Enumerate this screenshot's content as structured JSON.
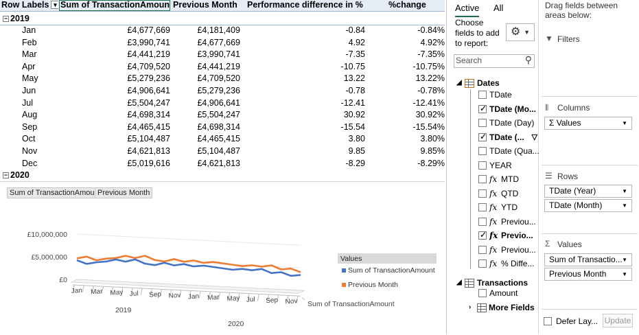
{
  "pivot": {
    "headers": [
      "Row Labels",
      "Sum of TransactionAmount",
      "Previous Month",
      "Performance difference in %",
      "%change"
    ],
    "year1": "2019",
    "year2": "2020",
    "rows": [
      [
        "Jan",
        "£4,677,669",
        "£4,181,409",
        "-0.84",
        "-0.84%"
      ],
      [
        "Feb",
        "£3,990,741",
        "£4,677,669",
        "4.92",
        "4.92%"
      ],
      [
        "Mar",
        "£4,441,219",
        "£3,990,741",
        "-7.35",
        "-7.35%"
      ],
      [
        "Apr",
        "£4,709,520",
        "£4,441,219",
        "-10.75",
        "-10.75%"
      ],
      [
        "May",
        "£5,279,236",
        "£4,709,520",
        "13.22",
        "13.22%"
      ],
      [
        "Jun",
        "£4,906,641",
        "£5,279,236",
        "-0.78",
        "-0.78%"
      ],
      [
        "Jul",
        "£5,504,247",
        "£4,906,641",
        "-12.41",
        "-12.41%"
      ],
      [
        "Aug",
        "£4,698,314",
        "£5,504,247",
        "30.92",
        "30.92%"
      ],
      [
        "Sep",
        "£4,465,415",
        "£4,698,314",
        "-15.54",
        "-15.54%"
      ],
      [
        "Oct",
        "£5,104,487",
        "£4,465,415",
        "3.80",
        "3.80%"
      ],
      [
        "Nov",
        "£4,621,813",
        "£5,104,487",
        "9.85",
        "9.85%"
      ],
      [
        "Dec",
        "£5,019,616",
        "£4,621,813",
        "-8.29",
        "-8.29%"
      ]
    ]
  },
  "chart": {
    "field_buttons": [
      "Sum of TransactionAmount",
      "Previous Month"
    ],
    "legend_title": "Values",
    "depth_label": "Sum of TransactionAmount"
  },
  "chart_data": {
    "type": "line",
    "x_month_labels": [
      "Jan",
      "Mar",
      "May",
      "Jul",
      "Sep",
      "Nov",
      "Jan",
      "Mar",
      "May",
      "Jul",
      "Sep",
      "Nov"
    ],
    "x_year_labels": [
      "2019",
      "2020"
    ],
    "ytick_labels": [
      "£10,000,000",
      "£5,000,000",
      "£0"
    ],
    "ylim": [
      0,
      10000000
    ],
    "series": [
      {
        "name": "Sum of TransactionAmount",
        "color": "#4472c4",
        "values": [
          4677669,
          3990741,
          4441219,
          4709520,
          5279236,
          4906641,
          5504247,
          4698314,
          4465415,
          5104487,
          4621813,
          5019616,
          4600000,
          4900000,
          4700000,
          4500000,
          4300000,
          4600000,
          4400000,
          4800000,
          4000000,
          4300000,
          3600000,
          3900000
        ]
      },
      {
        "name": "Previous Month",
        "color": "#ed7d31",
        "values": [
          4181409,
          4677669,
          3990741,
          4441219,
          4709520,
          5279236,
          4906641,
          5504247,
          4698314,
          4465415,
          5104487,
          4621813,
          5019616,
          4600000,
          4900000,
          4700000,
          4500000,
          4300000,
          4600000,
          4400000,
          4800000,
          4000000,
          4300000,
          3600000
        ]
      }
    ]
  },
  "fieldlist": {
    "tab_active": "Active",
    "tab_all": "All",
    "choose": "Choose fields to add to report:",
    "search_placeholder": "Search",
    "dates_table": "Dates",
    "fields": [
      {
        "label": "TDate",
        "checked": false,
        "fx": false,
        "bold": false
      },
      {
        "label": "TDate (Mo...",
        "checked": true,
        "fx": false,
        "bold": true
      },
      {
        "label": "TDate (Day)",
        "checked": false,
        "fx": false,
        "bold": false
      },
      {
        "label": "TDate (...",
        "checked": true,
        "fx": false,
        "bold": true
      },
      {
        "label": "TDate (Qua...",
        "checked": false,
        "fx": false,
        "bold": false
      },
      {
        "label": "YEAR",
        "checked": false,
        "fx": false,
        "bold": false
      },
      {
        "label": "MTD",
        "checked": false,
        "fx": true,
        "bold": false
      },
      {
        "label": "QTD",
        "checked": false,
        "fx": true,
        "bold": false
      },
      {
        "label": "YTD",
        "checked": false,
        "fx": true,
        "bold": false
      },
      {
        "label": "Previou...",
        "checked": false,
        "fx": true,
        "bold": false
      },
      {
        "label": "Previo...",
        "checked": true,
        "fx": true,
        "bold": true
      },
      {
        "label": "Previou...",
        "checked": false,
        "fx": true,
        "bold": false
      },
      {
        "label": "% Diffe...",
        "checked": false,
        "fx": true,
        "bold": false
      }
    ],
    "transactions_table": "Transactions",
    "amount": "Amount",
    "more_fields": "More Fields",
    "drag_label": "Drag fields between areas below:",
    "filters": "Filters",
    "columns": "Columns",
    "columns_items": [
      "Σ Values"
    ],
    "rows": "Rows",
    "rows_items": [
      "TDate (Year)",
      "TDate (Month)"
    ],
    "values": "Values",
    "values_items": [
      "Sum of Transactio...",
      "Previous Month"
    ],
    "defer": "Defer Lay...",
    "update": "Update"
  }
}
